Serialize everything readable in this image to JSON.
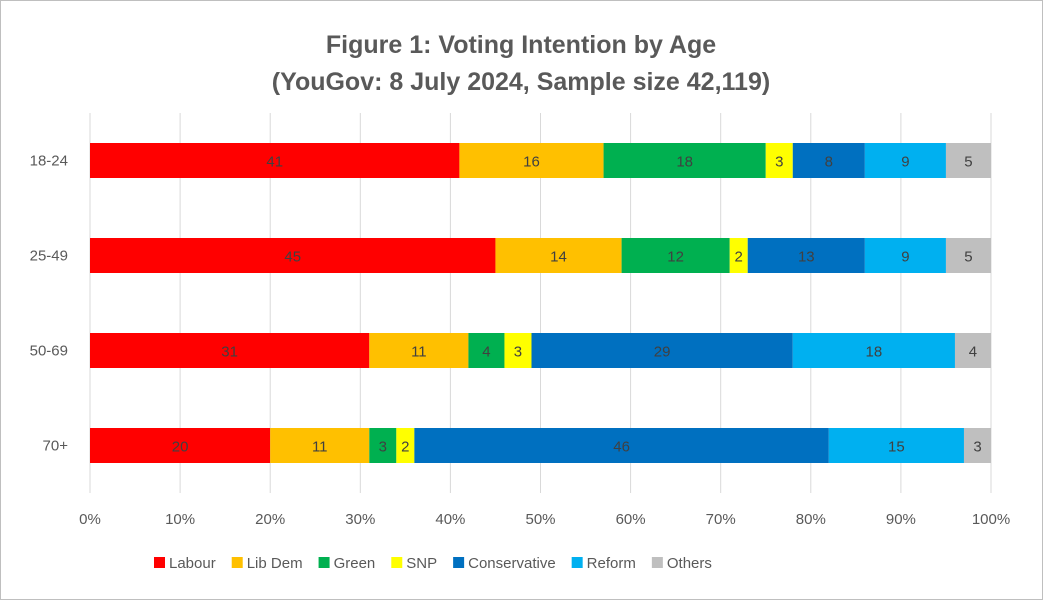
{
  "chart_data": {
    "type": "bar",
    "orientation": "horizontal",
    "stacked": "100%",
    "title": "Figure 1: Voting Intention by Age",
    "subtitle": "(YouGov: 8 July 2024, Sample size 42,119)",
    "categories": [
      "18-24",
      "25-49",
      "50-69",
      "70+"
    ],
    "series": [
      {
        "name": "Labour",
        "color": "#ff0000",
        "values": [
          41,
          45,
          31,
          20
        ]
      },
      {
        "name": "Lib Dem",
        "color": "#ffc000",
        "values": [
          16,
          14,
          11,
          11
        ]
      },
      {
        "name": "Green",
        "color": "#00b050",
        "values": [
          18,
          12,
          4,
          3
        ]
      },
      {
        "name": "SNP",
        "color": "#ffff00",
        "values": [
          3,
          2,
          3,
          2
        ]
      },
      {
        "name": "Conservative",
        "color": "#0070c0",
        "values": [
          8,
          13,
          29,
          46
        ]
      },
      {
        "name": "Reform",
        "color": "#00b0f0",
        "values": [
          9,
          9,
          18,
          15
        ]
      },
      {
        "name": "Others",
        "color": "#bfbfbf",
        "values": [
          5,
          5,
          4,
          3
        ]
      }
    ],
    "xlim": [
      0,
      100
    ],
    "xticks": [
      "0%",
      "10%",
      "20%",
      "30%",
      "40%",
      "50%",
      "60%",
      "70%",
      "80%",
      "90%",
      "100%"
    ],
    "grid": true,
    "legend": "bottom",
    "data_labels": true
  }
}
